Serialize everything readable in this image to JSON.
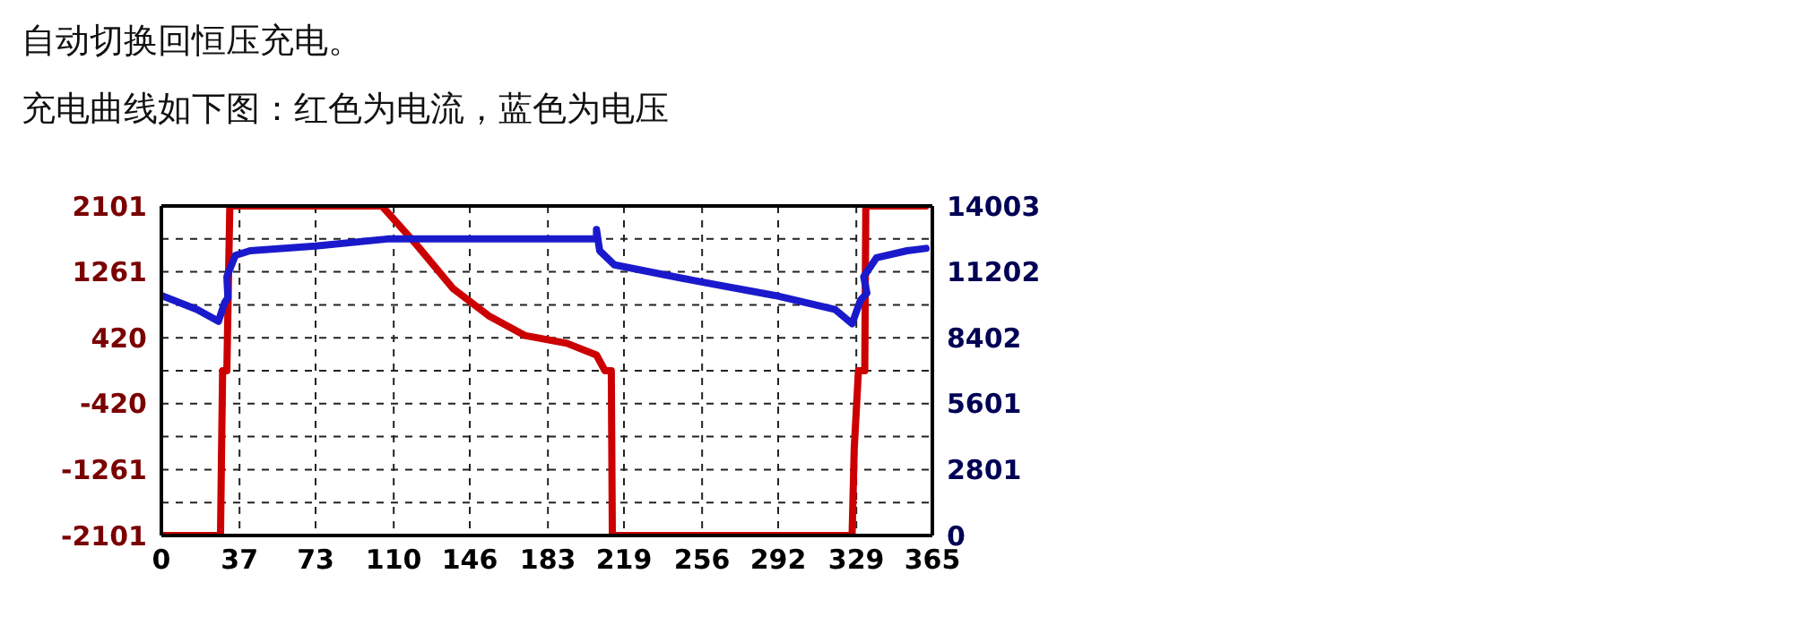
{
  "chart_data": {
    "type": "line",
    "title": "充电曲线如下图：红色为电流，蓝色为电压",
    "annotations": [
      "自动切换回恒压充电。"
    ],
    "series": [
      {
        "color": "#cc0000",
        "x": [
          0,
          28,
          28.5,
          29,
          31,
          32.4,
          104.4,
          121,
          138,
          155,
          172,
          192,
          206,
          210,
          213,
          213.5,
          327,
          328,
          330,
          333,
          333.5,
          362
        ],
        "values": [
          -2101,
          -2101,
          -1000,
          0,
          0,
          2101,
          2101,
          1600,
          1050,
          700,
          450,
          350,
          200,
          0,
          0,
          -2101,
          -2101,
          -1000,
          0,
          0,
          2101,
          2101
        ]
      },
      {
        "color": "#1a1acc",
        "axis": "y2",
        "x": [
          0,
          17,
          27,
          30,
          31.5,
          31,
          35,
          42,
          73,
          107,
          195,
          206,
          206,
          207.5,
          214.5,
          254,
          290.5,
          319,
          327,
          331,
          334,
          332.5,
          338.5,
          353,
          362
        ],
        "values": [
          10200,
          9600,
          9100,
          9900,
          10100,
          11000,
          11900,
          12100,
          12300,
          12600,
          12600,
          12600,
          13000,
          12100,
          11500,
          10800,
          10200,
          9600,
          9000,
          10000,
          10300,
          11000,
          11800,
          12100,
          12200
        ]
      }
    ],
    "xlim": [
      0,
      365
    ],
    "xticks": [
      0,
      37,
      73,
      110,
      146,
      183,
      219,
      256,
      292,
      329,
      365
    ],
    "ylim": [
      -2101,
      2101
    ],
    "yticks": [
      -2101,
      {
        "value": -1681,
        "label": null
      },
      -1261,
      {
        "value": -840,
        "label": null
      },
      -420,
      {
        "value": 0,
        "label": null
      },
      420,
      {
        "value": 840,
        "label": null
      },
      1261,
      {
        "value": 1681,
        "label": null
      },
      2101
    ],
    "y2lim": [
      0,
      14003
    ],
    "y2ticks": [
      0,
      2801,
      5601,
      8402,
      11202,
      14003
    ],
    "grid": true,
    "marker": "none",
    "line_style": "solid"
  }
}
